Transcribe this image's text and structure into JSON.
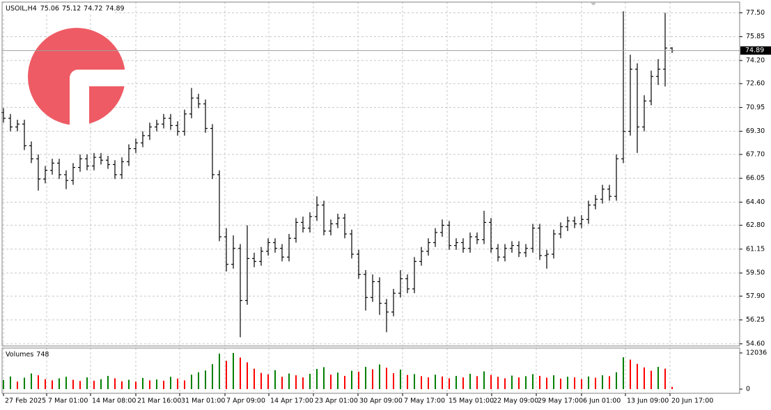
{
  "chart_data": [
    {
      "type": "ohlc",
      "title": "USOIL,H4",
      "color": "#000000",
      "grid": true,
      "price_line_color": "#a0a0a0",
      "open": [
        70.6,
        70.2,
        69.6,
        69.8,
        68.3,
        67.4,
        66.0,
        66.6,
        67.1,
        66.3,
        65.9,
        66.8,
        67.4,
        66.9,
        67.5,
        67.3,
        67.0,
        66.3,
        67.2,
        68.1,
        68.5,
        69.0,
        69.6,
        69.8,
        70.2,
        69.7,
        69.3,
        70.5,
        71.6,
        71.2,
        69.5,
        66.3,
        62.0,
        60.1,
        61.2,
        57.6,
        60.5,
        60.3,
        61.0,
        61.6,
        61.2,
        60.6,
        61.9,
        63.0,
        62.6,
        63.4,
        64.2,
        62.4,
        62.9,
        63.3,
        62.2,
        60.8,
        59.4,
        57.8,
        58.9,
        57.4,
        56.8,
        58.1,
        59.1,
        58.4,
        60.3,
        61.0,
        61.6,
        62.3,
        62.8,
        61.4,
        61.6,
        61.2,
        62.0,
        61.8,
        63.0,
        61.2,
        60.6,
        61.2,
        61.4,
        60.9,
        61.2,
        62.6,
        60.7,
        60.8,
        62.2,
        62.7,
        63.1,
        62.9,
        63.2,
        64.2,
        64.6,
        65.3,
        64.8,
        67.4,
        69.3,
        73.6,
        69.6,
        71.4,
        73.1,
        73.6,
        75.06
      ],
      "high": [
        70.9,
        70.5,
        70.1,
        70.1,
        68.6,
        67.7,
        66.9,
        67.4,
        67.4,
        66.6,
        67.1,
        67.7,
        67.7,
        67.8,
        67.8,
        67.6,
        67.3,
        67.5,
        68.4,
        68.8,
        69.3,
        69.9,
        70.1,
        70.5,
        70.5,
        70.0,
        70.8,
        72.3,
        71.9,
        71.5,
        69.8,
        66.6,
        62.6,
        62.1,
        61.5,
        62.8,
        60.9,
        61.3,
        61.9,
        61.9,
        61.5,
        62.2,
        63.3,
        63.4,
        63.7,
        64.8,
        64.5,
        63.2,
        63.6,
        63.6,
        62.5,
        61.1,
        59.7,
        59.4,
        59.2,
        57.7,
        58.4,
        59.7,
        59.4,
        60.6,
        61.3,
        61.9,
        62.6,
        63.2,
        63.1,
        61.9,
        61.9,
        62.3,
        62.3,
        63.8,
        63.3,
        61.5,
        61.5,
        61.7,
        61.7,
        61.5,
        62.9,
        62.9,
        61.1,
        62.5,
        63.0,
        63.4,
        63.4,
        63.5,
        64.5,
        64.9,
        65.6,
        65.6,
        67.7,
        77.6,
        74.6,
        74.0,
        71.8,
        73.5,
        74.3,
        77.5,
        75.12
      ],
      "low": [
        69.9,
        69.3,
        69.3,
        68.0,
        67.1,
        65.2,
        65.7,
        66.3,
        66.0,
        65.3,
        65.6,
        66.5,
        66.6,
        66.6,
        67.0,
        66.7,
        66.0,
        66.0,
        66.9,
        67.8,
        68.2,
        68.7,
        69.3,
        69.5,
        69.4,
        69.0,
        69.0,
        70.2,
        70.9,
        69.2,
        66.0,
        61.7,
        59.6,
        59.8,
        55.05,
        57.3,
        59.9,
        60.0,
        60.7,
        60.9,
        60.3,
        60.3,
        61.6,
        62.3,
        62.3,
        63.1,
        62.1,
        62.1,
        62.6,
        61.9,
        60.5,
        59.1,
        56.9,
        57.5,
        56.6,
        55.4,
        56.5,
        57.8,
        58.1,
        58.1,
        60.0,
        60.7,
        61.3,
        62.0,
        61.1,
        61.1,
        60.9,
        60.9,
        61.5,
        61.5,
        60.9,
        60.3,
        60.3,
        60.9,
        60.6,
        60.6,
        60.9,
        60.4,
        59.8,
        60.5,
        61.9,
        62.4,
        62.6,
        62.6,
        62.9,
        63.9,
        64.3,
        64.5,
        64.5,
        67.1,
        69.0,
        67.8,
        69.3,
        71.1,
        72.5,
        72.4,
        74.72
      ],
      "close": [
        70.2,
        69.6,
        69.8,
        68.3,
        67.4,
        66.0,
        66.6,
        67.1,
        66.3,
        65.9,
        66.8,
        67.4,
        66.9,
        67.5,
        67.3,
        67.0,
        66.3,
        67.2,
        68.1,
        68.5,
        69.0,
        69.6,
        69.8,
        70.2,
        69.7,
        69.3,
        70.5,
        71.6,
        71.2,
        69.5,
        66.3,
        62.0,
        60.1,
        61.2,
        57.6,
        60.5,
        60.3,
        61.0,
        61.6,
        61.2,
        60.6,
        61.9,
        63.0,
        62.6,
        63.4,
        64.2,
        62.4,
        62.9,
        63.3,
        62.2,
        60.8,
        59.4,
        57.8,
        58.9,
        57.4,
        56.8,
        58.1,
        59.1,
        58.4,
        60.3,
        61.0,
        61.6,
        62.3,
        62.8,
        61.4,
        61.6,
        61.2,
        62.0,
        61.8,
        63.0,
        61.2,
        60.6,
        61.2,
        61.4,
        60.9,
        61.2,
        62.6,
        60.7,
        60.8,
        62.2,
        62.7,
        63.1,
        62.9,
        63.2,
        64.2,
        64.6,
        65.3,
        64.8,
        67.4,
        69.3,
        73.6,
        69.6,
        71.4,
        73.1,
        73.6,
        75.06,
        74.89
      ],
      "xlim": [
        -0.2,
        105.7
      ],
      "xticks": [
        {
          "value": 0,
          "label": "27 Feb 2025"
        },
        {
          "value": 6.2,
          "label": "7 Mar 01:00"
        },
        {
          "value": 12.5,
          "label": "14 Mar 08:00"
        },
        {
          "value": 19,
          "label": "21 Mar 16:00"
        },
        {
          "value": 25.3,
          "label": "31 Mar 01:00"
        },
        {
          "value": 31.8,
          "label": "7 Apr 09:00"
        },
        {
          "value": 38.1,
          "label": "14 Apr 17:00"
        },
        {
          "value": 44.5,
          "label": "23 Apr 01:00"
        },
        {
          "value": 50.9,
          "label": "30 Apr 09:00"
        },
        {
          "value": 57.3,
          "label": "7 May 17:00"
        },
        {
          "value": 63.7,
          "label": "15 May 01:00"
        },
        {
          "value": 70.1,
          "label": "22 May 09:00"
        },
        {
          "value": 76.5,
          "label": "29 May 17:00"
        },
        {
          "value": 83,
          "label": "6 Jun 01:00"
        },
        {
          "value": 89.3,
          "label": "13 Jun 09:00"
        },
        {
          "value": 95.7,
          "label": "20 Jun 17:00"
        }
      ],
      "ylim": [
        54.45,
        78.24
      ],
      "yticks": [
        {
          "value": 77.5,
          "label": "77.50"
        },
        75.85,
        {
          "value": 74.2,
          "label": "74.20"
        },
        {
          "value": 72.6,
          "label": "72.60"
        },
        70.95,
        {
          "value": 69.3,
          "label": "69.30"
        },
        {
          "value": 67.7,
          "label": "67.70"
        },
        66.05,
        {
          "value": 64.4,
          "label": "64.40"
        },
        {
          "value": 62.8,
          "label": "62.80"
        },
        61.15,
        {
          "value": 59.5,
          "label": "59.50"
        },
        {
          "value": 57.9,
          "label": "57.90"
        },
        56.25,
        {
          "value": 54.6,
          "label": "54.60"
        }
      ]
    },
    {
      "type": "bar",
      "title": "Volumes",
      "up_color": "#008000",
      "down_color": "#ff0000",
      "values": [
        3000,
        4200,
        2500,
        3800,
        5200,
        4600,
        3300,
        2900,
        3600,
        4100,
        3100,
        2700,
        3900,
        2800,
        3300,
        4400,
        3600,
        2600,
        3100,
        2500,
        3700,
        2900,
        3200,
        2800,
        4100,
        3500,
        2900,
        4800,
        5600,
        6200,
        8300,
        11800,
        9400,
        12036,
        10500,
        8900,
        6800,
        5400,
        4900,
        6300,
        4100,
        5200,
        4600,
        3900,
        5100,
        6700,
        7300,
        4800,
        5500,
        4400,
        6100,
        5800,
        7400,
        6600,
        8200,
        7100,
        5300,
        6500,
        4700,
        5000,
        4300,
        3900,
        4800,
        4200,
        3600,
        4400,
        3900,
        5100,
        4300,
        5900,
        4700,
        4100,
        3600,
        4500,
        3900,
        4300,
        5000,
        4400,
        3800,
        4600,
        3500,
        4100,
        3900,
        3300,
        4200,
        3800,
        4600,
        4300,
        5600,
        10600,
        9800,
        8400,
        7200,
        6100,
        7400,
        6800,
        748
      ],
      "xlim": [
        -0.2,
        105.7
      ],
      "ylim": [
        -1389,
        13657
      ],
      "yticks": [
        12036,
        0
      ]
    }
  ]
}
